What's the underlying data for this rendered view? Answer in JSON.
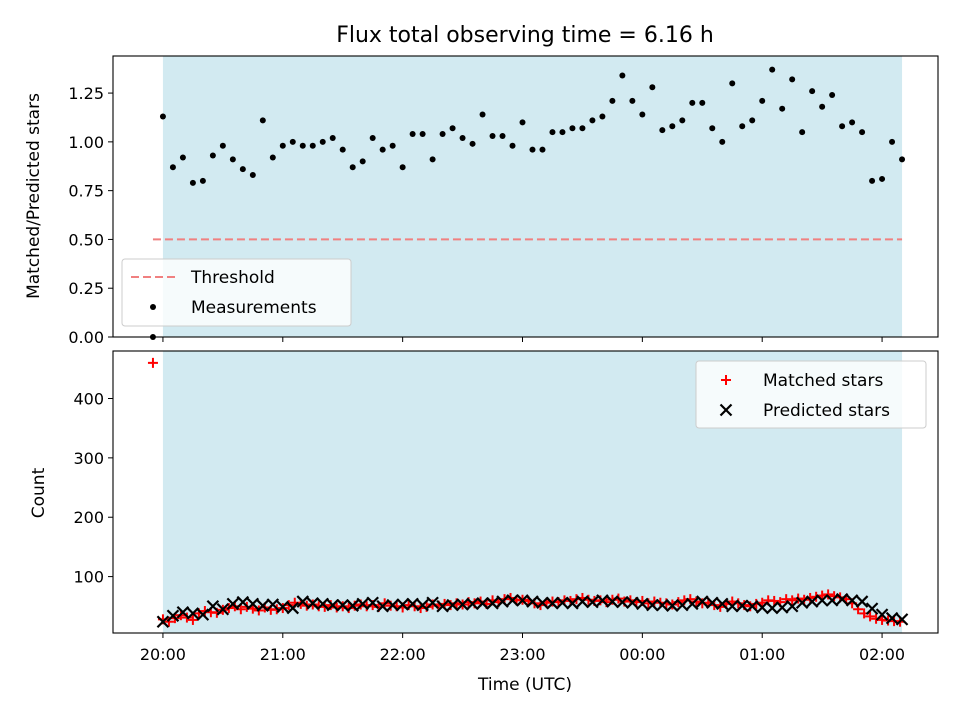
{
  "title": "Flux total observing time = 6.16 h",
  "colors": {
    "shade": "#add8e6",
    "threshold": "#f08080",
    "matched": "#ff0000",
    "predicted": "#000000",
    "measurements": "#000000"
  },
  "chart_data": [
    {
      "type": "scatter",
      "panel": "top",
      "title": "Flux total observing time = 6.16 h",
      "xlabel": "",
      "ylabel": "Matched/Predicted stars",
      "x_unit": "minutes after 20:00 UTC",
      "xlim": [
        -25,
        388
      ],
      "ylim": [
        0.0,
        1.44
      ],
      "yticks": [
        0.0,
        0.25,
        0.5,
        0.75,
        1.0,
        1.25
      ],
      "ytick_labels": [
        "0.00",
        "0.25",
        "0.50",
        "0.75",
        "1.00",
        "1.25"
      ],
      "shaded_span": [
        0,
        370
      ],
      "threshold": {
        "name": "Threshold",
        "y": 0.5,
        "x_range": [
          -5,
          370
        ]
      },
      "legend": [
        "Threshold",
        "Measurements"
      ],
      "legend_loc": "lower left",
      "measurements": {
        "name": "Measurements",
        "x": [
          -5,
          0,
          5,
          10,
          15,
          20,
          25,
          30,
          35,
          40,
          45,
          50,
          55,
          60,
          65,
          70,
          75,
          80,
          85,
          90,
          95,
          100,
          105,
          110,
          115,
          120,
          125,
          130,
          135,
          140,
          145,
          150,
          155,
          160,
          165,
          170,
          175,
          180,
          185,
          190,
          195,
          200,
          205,
          210,
          215,
          220,
          225,
          230,
          235,
          240,
          245,
          250,
          255,
          260,
          265,
          270,
          275,
          280,
          285,
          290,
          295,
          300,
          305,
          310,
          315,
          320,
          325,
          330,
          335,
          340,
          345,
          350,
          355,
          360,
          365,
          370
        ],
        "y": [
          0.0,
          1.13,
          0.87,
          0.92,
          0.79,
          0.8,
          0.93,
          0.98,
          0.91,
          0.86,
          0.83,
          1.11,
          0.92,
          0.98,
          1.0,
          0.98,
          0.98,
          1.0,
          1.02,
          0.96,
          0.87,
          0.9,
          1.02,
          0.96,
          0.98,
          0.87,
          1.04,
          1.04,
          0.91,
          1.04,
          1.07,
          1.02,
          0.99,
          1.14,
          1.03,
          1.03,
          0.98,
          1.1,
          0.96,
          0.96,
          1.05,
          1.05,
          1.07,
          1.07,
          1.11,
          1.13,
          1.21,
          1.34,
          1.21,
          1.14,
          1.28,
          1.06,
          1.08,
          1.11,
          1.2,
          1.2,
          1.07,
          1.0,
          1.3,
          1.08,
          1.11,
          1.21,
          1.37,
          1.17,
          1.32,
          1.05,
          1.26,
          1.18,
          1.24,
          1.08,
          1.1,
          1.05,
          0.8,
          0.81,
          1.0,
          0.91
        ]
      }
    },
    {
      "type": "scatter",
      "panel": "bottom",
      "xlabel": "Time (UTC)",
      "ylabel": "Count",
      "x_unit": "minutes after 20:00 UTC",
      "xlim": [
        -25,
        388
      ],
      "ylim": [
        5,
        480
      ],
      "xticks": [
        0,
        60,
        120,
        180,
        240,
        300,
        360
      ],
      "xtick_labels": [
        "20:00",
        "21:00",
        "22:00",
        "23:00",
        "00:00",
        "01:00",
        "02:00"
      ],
      "yticks": [
        100,
        200,
        300,
        400
      ],
      "ytick_labels": [
        "100",
        "200",
        "300",
        "400"
      ],
      "shaded_span": [
        0,
        370
      ],
      "legend": [
        "Matched stars",
        "Predicted stars"
      ],
      "legend_loc": "upper right",
      "series": [
        {
          "name": "Matched stars",
          "marker": "+",
          "x": [
            -5,
            0,
            3,
            6,
            9,
            12,
            15,
            18,
            21,
            24,
            27,
            30,
            33,
            36,
            39,
            42,
            45,
            48,
            51,
            54,
            57,
            60,
            63,
            66,
            69,
            72,
            75,
            78,
            81,
            84,
            87,
            90,
            93,
            96,
            99,
            102,
            105,
            108,
            111,
            114,
            117,
            120,
            123,
            126,
            129,
            132,
            135,
            138,
            141,
            144,
            147,
            150,
            153,
            156,
            159,
            162,
            165,
            168,
            171,
            174,
            177,
            180,
            183,
            186,
            189,
            192,
            195,
            198,
            201,
            204,
            207,
            210,
            213,
            216,
            219,
            222,
            225,
            228,
            231,
            234,
            237,
            240,
            243,
            246,
            249,
            252,
            255,
            258,
            261,
            264,
            267,
            270,
            273,
            276,
            279,
            282,
            285,
            288,
            291,
            294,
            297,
            300,
            303,
            306,
            309,
            312,
            315,
            318,
            321,
            324,
            327,
            330,
            333,
            336,
            339,
            342,
            345,
            348,
            351,
            354,
            357,
            360,
            363,
            366,
            369
          ],
          "y": [
            460,
            28,
            24,
            30,
            35,
            31,
            27,
            38,
            42,
            40,
            39,
            44,
            47,
            50,
            45,
            49,
            46,
            43,
            48,
            44,
            45,
            47,
            52,
            56,
            54,
            51,
            53,
            50,
            49,
            52,
            48,
            50,
            47,
            51,
            53,
            50,
            52,
            49,
            55,
            51,
            50,
            48,
            52,
            50,
            47,
            49,
            53,
            51,
            54,
            52,
            55,
            53,
            57,
            55,
            58,
            54,
            60,
            57,
            62,
            64,
            60,
            61,
            59,
            55,
            52,
            56,
            58,
            57,
            60,
            59,
            62,
            64,
            61,
            59,
            60,
            57,
            61,
            63,
            58,
            60,
            57,
            59,
            55,
            58,
            56,
            55,
            53,
            57,
            60,
            62,
            58,
            55,
            56,
            52,
            49,
            54,
            58,
            55,
            52,
            50,
            54,
            56,
            60,
            59,
            57,
            62,
            60,
            63,
            61,
            64,
            66,
            68,
            70,
            67,
            65,
            62,
            55,
            45,
            38,
            33,
            29,
            27,
            26,
            25,
            24
          ]
        },
        {
          "name": "Predicted stars",
          "marker": "x",
          "x": [
            0,
            5,
            10,
            15,
            20,
            25,
            30,
            35,
            40,
            45,
            50,
            55,
            60,
            65,
            70,
            75,
            80,
            85,
            90,
            95,
            100,
            105,
            110,
            115,
            120,
            125,
            130,
            135,
            140,
            145,
            150,
            155,
            160,
            165,
            170,
            175,
            180,
            185,
            190,
            195,
            200,
            205,
            210,
            215,
            220,
            225,
            230,
            235,
            240,
            245,
            250,
            255,
            260,
            265,
            270,
            275,
            280,
            285,
            290,
            295,
            300,
            305,
            310,
            315,
            320,
            325,
            330,
            335,
            340,
            345,
            350,
            355,
            360,
            365,
            370
          ],
          "y": [
            24,
            34,
            40,
            38,
            36,
            50,
            45,
            54,
            57,
            54,
            51,
            53,
            49,
            47,
            58,
            55,
            54,
            52,
            52,
            51,
            54,
            56,
            50,
            52,
            53,
            54,
            52,
            56,
            50,
            52,
            53,
            54,
            55,
            55,
            58,
            60,
            60,
            58,
            56,
            55,
            56,
            55,
            58,
            57,
            60,
            58,
            57,
            56,
            54,
            52,
            52,
            51,
            52,
            54,
            58,
            56,
            54,
            50,
            51,
            50,
            48,
            47,
            48,
            50,
            56,
            58,
            60,
            60,
            62,
            60,
            58,
            46,
            36,
            30,
            28
          ]
        }
      ]
    }
  ]
}
